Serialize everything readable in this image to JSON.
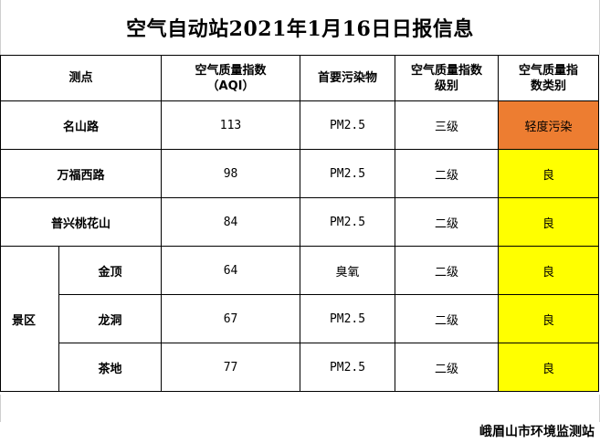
{
  "title": "空气自动站2021年1月16日日报信息",
  "headers": {
    "site": "测点",
    "aqi_line1": "空气质量指数",
    "aqi_line2": "（AQI）",
    "pollutant": "首要污染物",
    "grade_line1": "空气质量指数",
    "grade_line2": "级别",
    "category_line1": "空气质量指",
    "category_line2": "数类别"
  },
  "group_label": "景区",
  "rows": [
    {
      "site": "名山路",
      "aqi": "113",
      "pollutant": "PM2.5",
      "grade": "三级",
      "category": "轻度污染",
      "category_color": "#ed7d31"
    },
    {
      "site": "万福西路",
      "aqi": "98",
      "pollutant": "PM2.5",
      "grade": "二级",
      "category": "良",
      "category_color": "#ffff00"
    },
    {
      "site": "普兴桃花山",
      "aqi": "84",
      "pollutant": "PM2.5",
      "grade": "二级",
      "category": "良",
      "category_color": "#ffff00"
    },
    {
      "site": "金顶",
      "aqi": "64",
      "pollutant": "臭氧",
      "grade": "二级",
      "category": "良",
      "category_color": "#ffff00"
    },
    {
      "site": "龙洞",
      "aqi": "67",
      "pollutant": "PM2.5",
      "grade": "二级",
      "category": "良",
      "category_color": "#ffff00"
    },
    {
      "site": "茶地",
      "aqi": "77",
      "pollutant": "PM2.5",
      "grade": "二级",
      "category": "良",
      "category_color": "#ffff00"
    }
  ],
  "footer": "峨眉山市环境监测站"
}
